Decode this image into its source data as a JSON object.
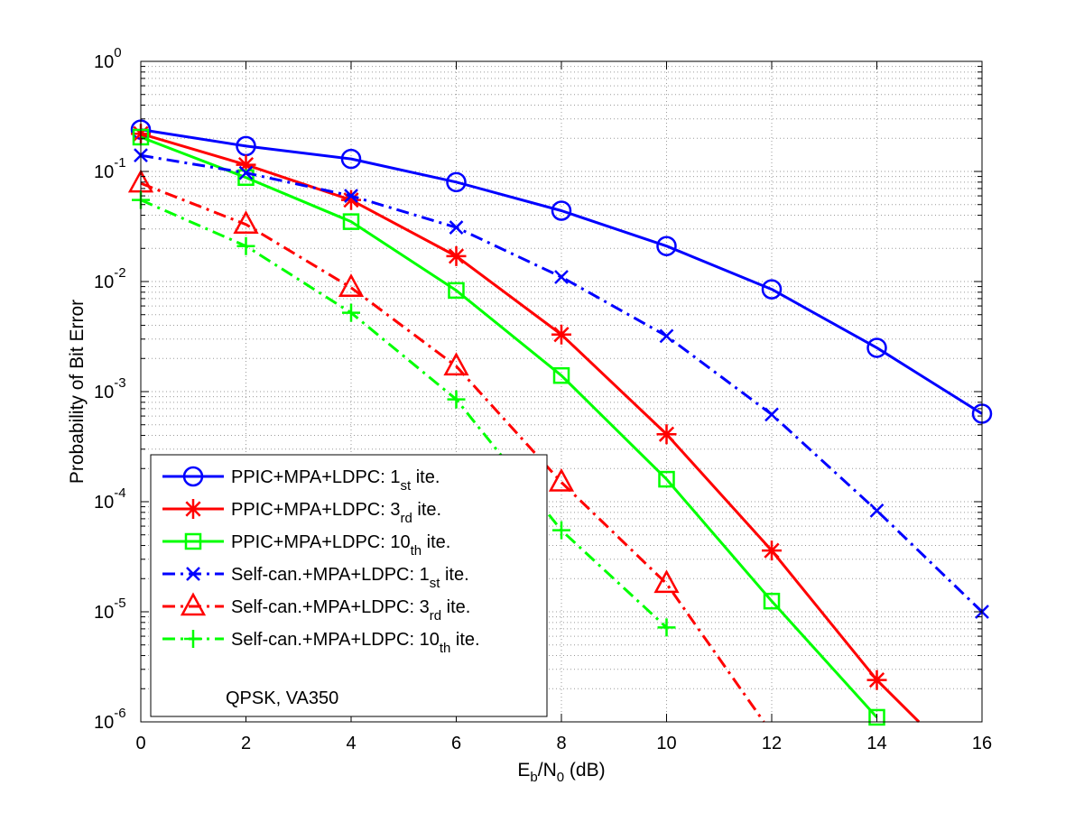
{
  "chart_data": {
    "type": "line",
    "xlabel": {
      "main": "E",
      "sub": "b",
      "main2": "/N",
      "sub2": "0",
      "tail": " (dB)"
    },
    "ylabel": "Probability of Bit Error",
    "xlim": [
      0,
      16
    ],
    "ylim": [
      1e-06,
      1
    ],
    "yscale": "log",
    "grid": true,
    "xticks": [
      0,
      2,
      4,
      6,
      8,
      10,
      12,
      14,
      16
    ],
    "yticks": [
      {
        "base": "10",
        "exp": "0",
        "value": 1
      },
      {
        "base": "10",
        "exp": "-1",
        "value": 0.1
      },
      {
        "base": "10",
        "exp": "-2",
        "value": 0.01
      },
      {
        "base": "10",
        "exp": "-3",
        "value": 0.001
      },
      {
        "base": "10",
        "exp": "-4",
        "value": 0.0001
      },
      {
        "base": "10",
        "exp": "-5",
        "value": 1e-05
      },
      {
        "base": "10",
        "exp": "-6",
        "value": 1e-06
      }
    ],
    "legend_position": "bottom-left",
    "series": [
      {
        "name": "PPIC+MPA+LDPC: 1st ite.",
        "label": {
          "pre": "PPIC+MPA+LDPC: 1",
          "sub": "st",
          "post": " ite."
        },
        "color": "#0000ff",
        "dash": "solid",
        "marker": "circle",
        "x": [
          0,
          2,
          4,
          6,
          8,
          10,
          12,
          14,
          16
        ],
        "y": [
          0.24,
          0.17,
          0.13,
          0.08,
          0.044,
          0.021,
          0.0085,
          0.0025,
          0.00063
        ]
      },
      {
        "name": "PPIC+MPA+LDPC: 3rd ite.",
        "label": {
          "pre": "PPIC+MPA+LDPC: 3",
          "sub": "rd",
          "post": " ite."
        },
        "color": "#ff0000",
        "dash": "solid",
        "marker": "star",
        "x": [
          0,
          2,
          4,
          6,
          8,
          10,
          12,
          14,
          14.8
        ],
        "y": [
          0.22,
          0.115,
          0.055,
          0.017,
          0.0033,
          0.00041,
          3.6e-05,
          2.4e-06,
          1e-06
        ],
        "markers": [
          0,
          1,
          2,
          3,
          4,
          5,
          6,
          7
        ]
      },
      {
        "name": "PPIC+MPA+LDPC: 10th ite.",
        "label": {
          "pre": "PPIC+MPA+LDPC: 10",
          "sub": "th",
          "post": " ite."
        },
        "color": "#00ff00",
        "dash": "solid",
        "marker": "square",
        "x": [
          0,
          2,
          4,
          6,
          8,
          10,
          12,
          14
        ],
        "y": [
          0.205,
          0.088,
          0.035,
          0.0083,
          0.0014,
          0.00016,
          1.25e-05,
          1.1e-06
        ]
      },
      {
        "name": "Self-can.+MPA+LDPC: 1st ite.",
        "label": {
          "pre": "Self-can.+MPA+LDPC: 1",
          "sub": "st",
          "post": " ite."
        },
        "color": "#0000ff",
        "dash": "dashdot",
        "marker": "x",
        "x": [
          0,
          2,
          4,
          6,
          8,
          10,
          12,
          14,
          16
        ],
        "y": [
          0.14,
          0.097,
          0.06,
          0.031,
          0.011,
          0.0032,
          0.00062,
          8.3e-05,
          1e-05
        ]
      },
      {
        "name": "Self-can.+MPA+LDPC: 3rd ite.",
        "label": {
          "pre": "Self-can.+MPA+LDPC: 3",
          "sub": "rd",
          "post": " ite."
        },
        "color": "#ff0000",
        "dash": "dashdot",
        "marker": "triangle",
        "x": [
          0,
          2,
          4,
          6,
          8,
          10,
          11.85
        ],
        "y": [
          0.078,
          0.033,
          0.0088,
          0.0017,
          0.00015,
          1.8e-05,
          1e-06
        ],
        "markers": [
          0,
          1,
          2,
          3,
          4,
          5
        ]
      },
      {
        "name": "Self-can.+MPA+LDPC: 10th ite.",
        "label": {
          "pre": "Self-can.+MPA+LDPC: 10",
          "sub": "th",
          "post": " ite."
        },
        "color": "#00ff00",
        "dash": "dashdot",
        "marker": "plus",
        "x": [
          0,
          2,
          4,
          6,
          8,
          10
        ],
        "y": [
          0.055,
          0.021,
          0.0052,
          0.00085,
          5.5e-05,
          7.2e-06
        ]
      }
    ],
    "annotation": "QPSK, VA350"
  }
}
